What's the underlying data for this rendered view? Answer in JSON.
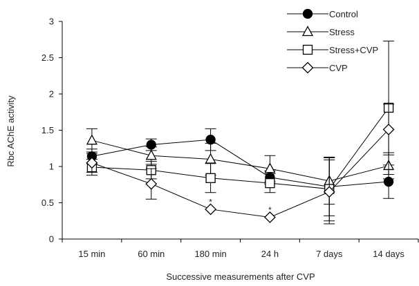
{
  "chart_data": {
    "type": "line",
    "title": "",
    "xlabel": "Successive measurements after CVP",
    "ylabel": "Rbc AChE activity",
    "categories": [
      "15 min",
      "60 min",
      "180 min",
      "24 h",
      "7 days",
      "14 days"
    ],
    "ylim": [
      0,
      3
    ],
    "yticks": [
      "0",
      "0.5",
      "1",
      "1.5",
      "2",
      "2.5",
      "3"
    ],
    "grid": false,
    "legend_position": "top-right",
    "series": [
      {
        "name": "Control",
        "marker": "circle-filled",
        "values": [
          1.14,
          1.3,
          1.37,
          0.85,
          0.72,
          0.79
        ],
        "error": [
          0.1,
          0.08,
          0.15,
          0.09,
          0.4,
          0.23
        ]
      },
      {
        "name": "Stress",
        "marker": "triangle-open",
        "values": [
          1.36,
          1.15,
          1.1,
          0.97,
          0.8,
          1.01
        ],
        "error": [
          0.16,
          0.12,
          0.22,
          0.18,
          0.32,
          0.18
        ]
      },
      {
        "name": "Stress+CVP",
        "marker": "square-open",
        "values": [
          0.99,
          0.95,
          0.84,
          0.77,
          0.69,
          1.81
        ],
        "error": [
          0.11,
          0.12,
          0.2,
          0.13,
          0.44,
          0.92
        ]
      },
      {
        "name": "CVP",
        "marker": "diamond-open",
        "values": [
          1.05,
          0.76,
          0.41,
          0.3,
          0.65,
          1.51
        ],
        "error": [
          0.13,
          0.21,
          0.0,
          0.0,
          0.44,
          0.35
        ]
      }
    ],
    "annotations": [
      {
        "text": "*",
        "category": "180 min",
        "value": 0.51
      },
      {
        "text": "*",
        "category": "24 h",
        "value": 0.4
      }
    ]
  }
}
